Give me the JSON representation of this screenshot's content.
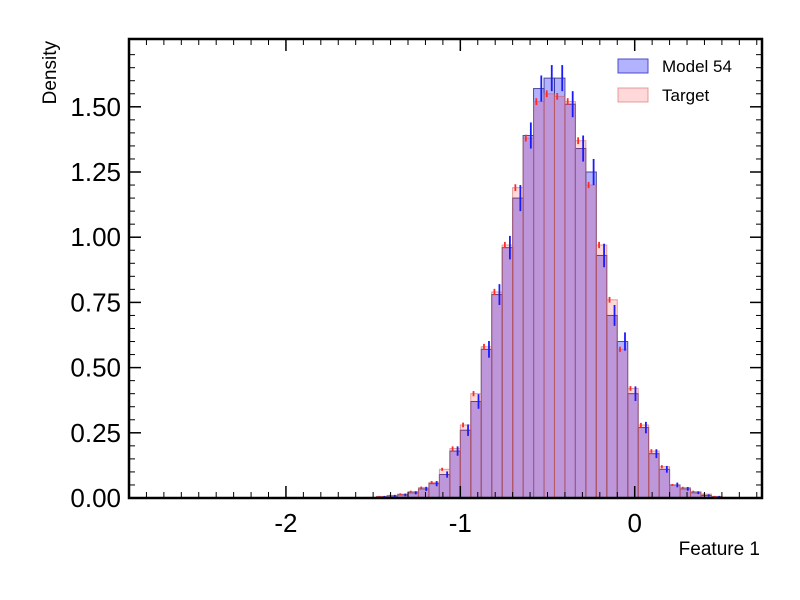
{
  "chart_data": {
    "type": "histogram",
    "xlabel": "Feature 1",
    "ylabel": "Density",
    "xlim": [
      -2.9,
      0.73
    ],
    "ylim": [
      0,
      1.76
    ],
    "x_ticks": [
      -2,
      -1,
      0
    ],
    "x_tick_labels": [
      "-2",
      "-1",
      "0"
    ],
    "y_ticks": [
      0,
      0.25,
      0.5,
      0.75,
      1.0,
      1.25,
      1.5
    ],
    "y_tick_labels": [
      "0.00",
      "0.25",
      "0.50",
      "0.75",
      "1.00",
      "1.25",
      "1.50"
    ],
    "bin_start": -1.6,
    "bin_width": 0.06,
    "legend_position": "top-right",
    "series": [
      {
        "name": "Model 54",
        "color": "#0000ff",
        "values": [
          0,
          0.002,
          0.005,
          0.008,
          0.012,
          0.02,
          0.035,
          0.055,
          0.09,
          0.18,
          0.26,
          0.37,
          0.57,
          0.78,
          0.96,
          1.15,
          1.39,
          1.57,
          1.61,
          1.61,
          1.51,
          1.34,
          1.25,
          0.93,
          0.7,
          0.6,
          0.4,
          0.27,
          0.17,
          0.11,
          0.05,
          0.035,
          0.02,
          0.01,
          0.005,
          0.002,
          0.001
        ],
        "errors": [
          0,
          0,
          0.003,
          0.004,
          0.005,
          0.006,
          0.008,
          0.01,
          0.012,
          0.018,
          0.022,
          0.028,
          0.032,
          0.04,
          0.045,
          0.05,
          0.05,
          0.05,
          0.05,
          0.05,
          0.05,
          0.05,
          0.05,
          0.045,
          0.04,
          0.035,
          0.028,
          0.022,
          0.017,
          0.013,
          0.009,
          0.007,
          0.005,
          0.004,
          0.003,
          0.002,
          0.001
        ]
      },
      {
        "name": "Target",
        "color": "#ff0000",
        "values": [
          0,
          0.002,
          0.006,
          0.01,
          0.015,
          0.025,
          0.04,
          0.06,
          0.11,
          0.19,
          0.28,
          0.4,
          0.58,
          0.79,
          0.97,
          1.19,
          1.38,
          1.52,
          1.55,
          1.54,
          1.52,
          1.37,
          1.2,
          0.97,
          0.76,
          0.57,
          0.42,
          0.28,
          0.18,
          0.12,
          0.05,
          0.04,
          0.025,
          0.015,
          0.006,
          0.002,
          0.001
        ],
        "errors": [
          0,
          0,
          0.002,
          0.002,
          0.003,
          0.003,
          0.004,
          0.005,
          0.006,
          0.008,
          0.009,
          0.01,
          0.011,
          0.012,
          0.012,
          0.013,
          0.013,
          0.013,
          0.013,
          0.013,
          0.013,
          0.013,
          0.012,
          0.012,
          0.011,
          0.01,
          0.009,
          0.008,
          0.007,
          0.006,
          0.004,
          0.003,
          0.003,
          0.002,
          0.002,
          0.001,
          0.001
        ]
      }
    ]
  }
}
